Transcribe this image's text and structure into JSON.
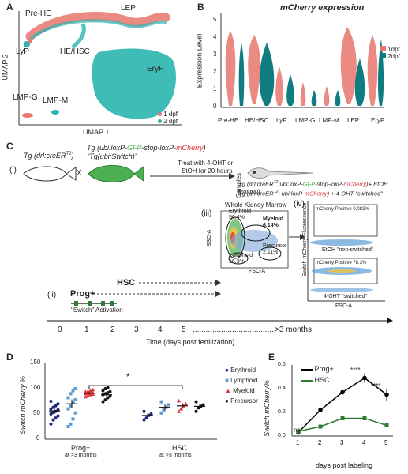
{
  "panels": {
    "A": {
      "label": "A",
      "xlabel": "UMAP 1",
      "ylabel": "UMAP 2",
      "clusters": [
        "Pre-HE",
        "LEP",
        "LyP",
        "HE/HSC",
        "EryP",
        "LMP-G",
        "LMP-M"
      ],
      "legend": [
        {
          "name": "1 dpf",
          "color": "#e8766c"
        },
        {
          "name": "2 dpf",
          "color": "#2bb5ae"
        }
      ]
    },
    "B": {
      "label": "B",
      "title": "mCherry expression",
      "ylabel": "Expression Level",
      "yticks": [
        "0",
        "1",
        "2",
        "3",
        "4",
        "5"
      ],
      "categories": [
        "Pre-HE",
        "HE/HSC",
        "LyP",
        "LMP-G",
        "LMP-M",
        "LEP",
        "EryP"
      ],
      "legend": [
        {
          "name": "1dpf",
          "color": "#e8766c"
        },
        {
          "name": "2dpf",
          "color": "#0e7c80"
        }
      ]
    },
    "C": {
      "label": "C",
      "i": "(i)",
      "ii": "(ii)",
      "iii": "(iii)",
      "iv": "(iv)",
      "fish1": "Tg (drl:creER",
      "fish1_sup": "T2",
      "fish1_close": ")",
      "fish2_pre": "Tg (ubi:loxP-",
      "fish2_gfp": "GFP",
      "fish2_mid": "-stop-loxP-",
      "fish2_mch": "mCherry",
      "fish2_close": ")",
      "fish2_alias": "\"Tg(ubi:Switch)\"",
      "cross": "X",
      "treat1": "Treat with 4-OHT or",
      "treat2": "EtOH for 20 hours",
      "samples": "Samples",
      "ctrl": "Tg (drl:creER",
      "ctrl_sup": "T2",
      "ctrl_rest_a": ";ubi:loxP-",
      "ctrl_gfp": "GFP",
      "ctrl_rest_b": "-stop-loxP-",
      "ctrl_mch": "mCherry",
      "ctrl_rest_c": ")+ EtOH (control)",
      "sw": "Tg (drl:creER",
      "sw_sup": "T2",
      "sw_rest_a": "; ubi:loxP-",
      "sw_mch": "mCherry",
      "sw_rest_b": ") + 4-OHT \"switched\"",
      "marrow_title": "Whole Kidney Marrow",
      "gate_erythroid": "Erythroid",
      "gate_erythroid_pct": "56.4%",
      "gate_myeloid": "Myeloid",
      "gate_myeloid_pct": "6.14%",
      "gate_lymphoid": "Lymphoid",
      "gate_lymphoid_pct": "16.3%",
      "gate_precursor": "Precursor",
      "gate_precursor_pct": "2.11%",
      "ssc": "SSC-A",
      "fsc": "FSC-A",
      "facs_ylabel": "Switch mCherry Fluorescence",
      "facs_xlabel": "FSC-A",
      "box1": "mCherry Positive 0.083%",
      "box1_label": "EtOH \"non-switched\"",
      "box2": "mCherry Positive 78.3%",
      "box2_label": "4-OHT \"switched\"",
      "hsc": "HSC",
      "prog": "Prog+",
      "switch_act": "\"Switch\" Activation",
      "timeline_ticks": [
        "0",
        "1",
        "2",
        "3",
        "4",
        "5"
      ],
      "timeline_dots": "......................................",
      "timeline_end": ">3 months",
      "timeline_label": "Time (days post fertilization)"
    },
    "D": {
      "label": "D",
      "ylabel": "Switch mCherry %",
      "yticks": [
        "0",
        "50",
        "100",
        "150"
      ],
      "groups": [
        {
          "name": "Prog+",
          "sub": "at >3 months"
        },
        {
          "name": "HSC",
          "sub": "at >3 months"
        }
      ],
      "significance": "*",
      "legend": [
        {
          "name": "Erythroid",
          "color": "#1a237e"
        },
        {
          "name": "Lymphoid",
          "color": "#5b9bd5"
        },
        {
          "name": "Myeloid",
          "color": "#e0303a"
        },
        {
          "name": "Precursor",
          "color": "#111111"
        }
      ]
    },
    "E": {
      "label": "E",
      "ylabel": "Switch mCherry%",
      "xlabel": "days post labeling",
      "yticks": [
        "0.0",
        "0.2",
        "0.4",
        "0.6"
      ],
      "stars": [
        "ns",
        "****",
        "****"
      ]
    }
  },
  "chart_data": [
    {
      "type": "scatter",
      "panel": "D",
      "ylabel": "Switch mCherry %",
      "ylim": [
        0,
        150
      ],
      "groups": [
        "Prog+",
        "HSC"
      ],
      "series": [
        {
          "name": "Erythroid",
          "group": "Prog+",
          "mean": 56,
          "sem": 6,
          "values": [
            30,
            38,
            42,
            46,
            50,
            53,
            55,
            58,
            60,
            63,
            66,
            70,
            75
          ]
        },
        {
          "name": "Lymphoid",
          "group": "Prog+",
          "mean": 70,
          "sem": 9,
          "values": [
            25,
            30,
            40,
            52,
            60,
            66,
            72,
            78,
            82,
            90,
            96,
            100
          ]
        },
        {
          "name": "Myeloid",
          "group": "Prog+",
          "mean": 91,
          "sem": 2,
          "values": [
            84,
            86,
            88,
            89,
            90,
            91,
            92,
            93,
            94,
            95,
            96,
            98
          ]
        },
        {
          "name": "Precursor",
          "group": "Prog+",
          "mean": 88,
          "sem": 3,
          "values": [
            74,
            78,
            82,
            85,
            88,
            90,
            92,
            94,
            96,
            100,
            102
          ]
        },
        {
          "name": "Erythroid",
          "group": "HSC",
          "mean": 47,
          "sem": 4,
          "values": [
            38,
            42,
            47,
            50,
            55
          ]
        },
        {
          "name": "Lymphoid",
          "group": "HSC",
          "mean": 63,
          "sem": 6,
          "values": [
            52,
            58,
            63,
            68,
            74
          ]
        },
        {
          "name": "Myeloid",
          "group": "HSC",
          "mean": 66,
          "sem": 6,
          "values": [
            55,
            60,
            66,
            70,
            76
          ]
        },
        {
          "name": "Precursor",
          "group": "HSC",
          "mean": 65,
          "sem": 5,
          "values": [
            55,
            62,
            65,
            68,
            74
          ]
        }
      ]
    },
    {
      "type": "line",
      "panel": "E",
      "xlabel": "days post labeling",
      "ylabel": "Switch mCherry%",
      "x": [
        1,
        2,
        3,
        4,
        5
      ],
      "ylim": [
        0,
        0.6
      ],
      "series": [
        {
          "name": "Prog+",
          "color": "#000000",
          "values": [
            0.03,
            0.22,
            0.37,
            0.49,
            0.35
          ],
          "err": [
            0.01,
            0.02,
            0.02,
            0.04,
            0.05
          ]
        },
        {
          "name": "HSC",
          "color": "#2e7d32",
          "values": [
            0.04,
            0.08,
            0.15,
            0.15,
            0.09
          ],
          "err": [
            0.01,
            0.01,
            0.01,
            0.01,
            0.01
          ]
        }
      ]
    }
  ]
}
